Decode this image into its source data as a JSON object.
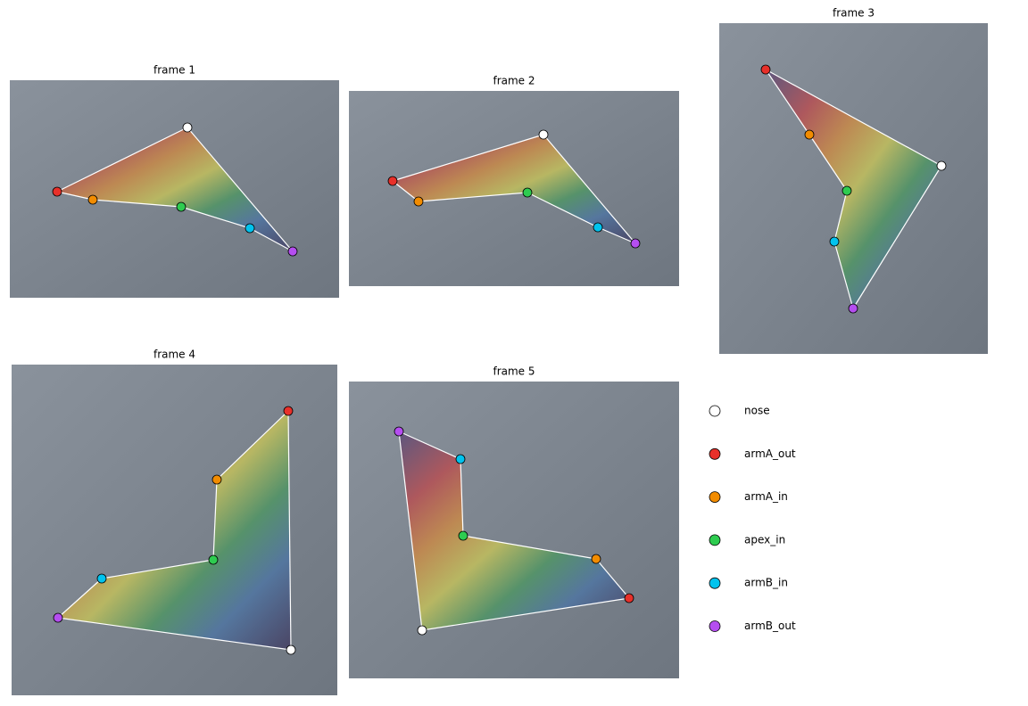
{
  "frames": [
    {
      "title": "frame 1"
    },
    {
      "title": "frame 2"
    },
    {
      "title": "frame 3"
    },
    {
      "title": "frame 4"
    },
    {
      "title": "frame 5"
    }
  ],
  "legend": [
    {
      "name": "nose",
      "color": "#ffffff"
    },
    {
      "name": "armA_out",
      "color": "#e8302a"
    },
    {
      "name": "armA_in",
      "color": "#f28c00"
    },
    {
      "name": "apex_in",
      "color": "#2ecc50"
    },
    {
      "name": "armB_in",
      "color": "#00c3ee"
    },
    {
      "name": "armB_out",
      "color": "#b54ef0"
    }
  ]
}
